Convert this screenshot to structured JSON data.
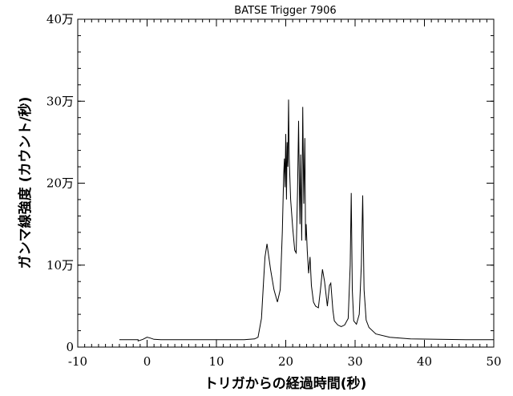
{
  "chart_data": {
    "type": "line",
    "title": "BATSE Trigger 7906",
    "xlabel": "トリガからの経過時間(秒)",
    "ylabel": "ガンマ線強度 (カウント/秒)",
    "xlim": [
      -10,
      50
    ],
    "ylim": [
      0,
      400000
    ],
    "x_ticks": [
      -10,
      0,
      10,
      20,
      30,
      40,
      50
    ],
    "x_tick_labels": [
      "-10",
      "0",
      "10",
      "20",
      "30",
      "40",
      "50"
    ],
    "y_ticks": [
      0,
      100000,
      200000,
      300000,
      400000
    ],
    "y_tick_labels": [
      "0",
      "10万",
      "20万",
      "30万",
      "40万"
    ],
    "grid": false,
    "series": [
      {
        "x": [
          -4,
          -2.5,
          -1.3,
          -1.3,
          -0.6,
          0,
          0.5,
          1,
          2,
          5,
          10,
          14,
          15.5,
          16,
          16.5,
          16.8,
          17,
          17.3,
          17.8,
          18.3,
          18.8,
          19.2,
          19.5,
          19.7,
          19.8,
          19.9,
          20.0,
          20.1,
          20.2,
          20.3,
          20.4,
          20.5,
          20.7,
          21.0,
          21.3,
          21.5,
          21.7,
          21.85,
          21.95,
          22.05,
          22.15,
          22.3,
          22.45,
          22.6,
          22.75,
          22.85,
          22.95,
          23.1,
          23.3,
          23.5,
          23.7,
          24.0,
          24.3,
          24.7,
          25.0,
          25.3,
          25.6,
          26.0,
          26.3,
          26.5,
          26.8,
          27.0,
          27.5,
          28.0,
          28.5,
          29.0,
          29.3,
          29.45,
          29.6,
          29.8,
          30.2,
          30.6,
          30.9,
          31.1,
          31.3,
          31.6,
          32.0,
          33,
          35,
          38,
          42,
          46,
          50
        ],
        "y": [
          9000,
          9000,
          9000,
          7500,
          9500,
          12000,
          11000,
          9500,
          9000,
          9000,
          9000,
          9000,
          10000,
          12000,
          35000,
          80000,
          110000,
          126000,
          95000,
          70000,
          55000,
          70000,
          140000,
          210000,
          230000,
          195000,
          260000,
          180000,
          250000,
          220000,
          302000,
          230000,
          180000,
          145000,
          118000,
          115000,
          190000,
          276000,
          200000,
          150000,
          235000,
          130000,
          293000,
          175000,
          255000,
          130000,
          150000,
          118000,
          90000,
          110000,
          75000,
          55000,
          50000,
          48000,
          70000,
          95000,
          80000,
          50000,
          75000,
          78000,
          45000,
          32000,
          27000,
          25000,
          27000,
          35000,
          100000,
          188000,
          70000,
          32000,
          28000,
          40000,
          100000,
          185000,
          70000,
          33000,
          24000,
          16000,
          12000,
          10000,
          9500,
          9000,
          9000
        ]
      }
    ]
  }
}
